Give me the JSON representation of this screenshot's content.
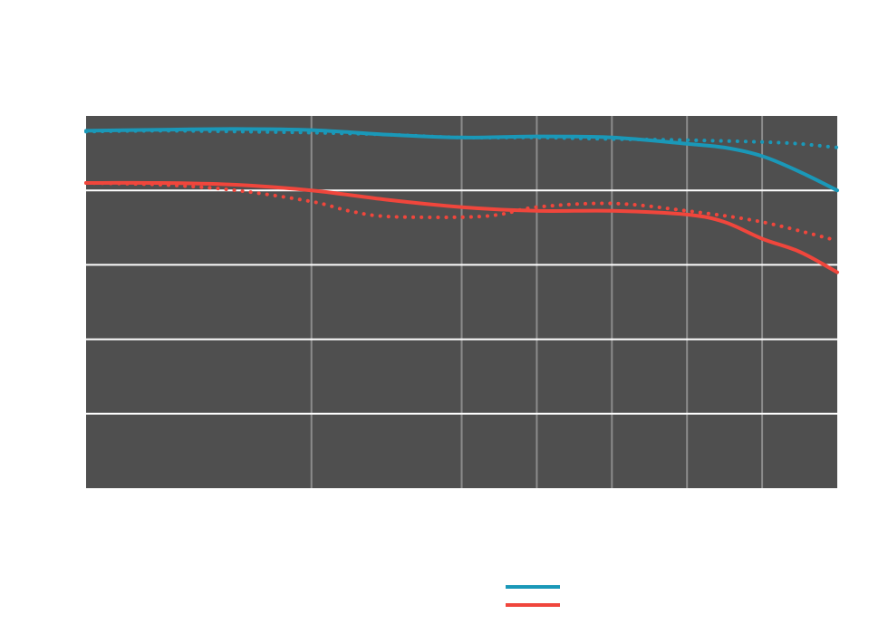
{
  "chart_data": {
    "type": "line",
    "title": "",
    "xlabel": "",
    "ylabel": "",
    "grid": true,
    "legend_placement": "bottom-center",
    "background": "#4f4f4f",
    "grid_color": "#8c8c8c",
    "ylim": [
      0,
      1
    ],
    "ygrid": [
      0.2,
      0.4,
      0.6,
      0.8
    ],
    "xgrid": [
      0.3,
      0.5,
      0.6,
      0.7,
      0.8,
      0.9
    ],
    "xlim": [
      0,
      1
    ],
    "series": [
      {
        "color": "#1a98b8",
        "style": "solid",
        "points": [
          [
            0.0,
            0.96
          ],
          [
            0.1,
            0.963
          ],
          [
            0.2,
            0.965
          ],
          [
            0.3,
            0.962
          ],
          [
            0.4,
            0.95
          ],
          [
            0.5,
            0.942
          ],
          [
            0.6,
            0.945
          ],
          [
            0.7,
            0.942
          ],
          [
            0.8,
            0.925
          ],
          [
            0.85,
            0.915
          ],
          [
            0.9,
            0.892
          ],
          [
            0.95,
            0.85
          ],
          [
            1.0,
            0.8
          ]
        ]
      },
      {
        "color": "#1a98b8",
        "style": "dotted",
        "points": [
          [
            0.0,
            0.958
          ],
          [
            0.1,
            0.96
          ],
          [
            0.2,
            0.958
          ],
          [
            0.3,
            0.955
          ],
          [
            0.4,
            0.95
          ],
          [
            0.5,
            0.942
          ],
          [
            0.6,
            0.942
          ],
          [
            0.7,
            0.938
          ],
          [
            0.8,
            0.935
          ],
          [
            0.9,
            0.93
          ],
          [
            0.95,
            0.925
          ],
          [
            1.0,
            0.915
          ]
        ]
      },
      {
        "color": "#f0463c",
        "style": "solid",
        "points": [
          [
            0.0,
            0.82
          ],
          [
            0.1,
            0.82
          ],
          [
            0.2,
            0.815
          ],
          [
            0.3,
            0.8
          ],
          [
            0.4,
            0.775
          ],
          [
            0.5,
            0.755
          ],
          [
            0.6,
            0.745
          ],
          [
            0.7,
            0.745
          ],
          [
            0.8,
            0.735
          ],
          [
            0.85,
            0.715
          ],
          [
            0.9,
            0.67
          ],
          [
            0.95,
            0.635
          ],
          [
            1.0,
            0.58
          ]
        ]
      },
      {
        "color": "#f0463c",
        "style": "dotted",
        "points": [
          [
            0.0,
            0.82
          ],
          [
            0.1,
            0.815
          ],
          [
            0.2,
            0.8
          ],
          [
            0.3,
            0.77
          ],
          [
            0.35,
            0.745
          ],
          [
            0.4,
            0.73
          ],
          [
            0.5,
            0.728
          ],
          [
            0.55,
            0.735
          ],
          [
            0.6,
            0.755
          ],
          [
            0.7,
            0.765
          ],
          [
            0.8,
            0.745
          ],
          [
            0.9,
            0.715
          ],
          [
            1.0,
            0.665
          ]
        ]
      }
    ],
    "legend": [
      {
        "color": "#1a98b8"
      },
      {
        "color": "#f0463c"
      }
    ]
  }
}
